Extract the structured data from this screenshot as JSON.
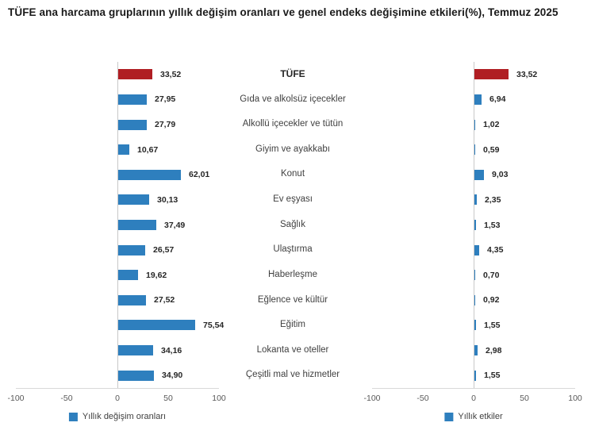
{
  "title": "TÜFE ana harcama gruplarının yıllık değişim oranları ve genel endeks değişimine etkileri(%), Temmuz 2025",
  "chart_data": {
    "type": "bar",
    "orientation": "horizontal",
    "highlight_category": "TÜFE",
    "categories": [
      "TÜFE",
      "Gıda ve alkolsüz içecekler",
      "Alkollü içecekler ve tütün",
      "Giyim ve ayakkabı",
      "Konut",
      "Ev eşyası",
      "Sağlık",
      "Ulaştırma",
      "Haberleşme",
      "Eğlence ve kültür",
      "Eğitim",
      "Lokanta ve oteller",
      "Çeşitli mal ve hizmetler"
    ],
    "series": [
      {
        "name": "Yıllık değişim oranları",
        "values": [
          33.52,
          27.95,
          27.79,
          10.67,
          62.01,
          30.13,
          37.49,
          26.57,
          19.62,
          27.52,
          75.54,
          34.16,
          34.9
        ],
        "value_labels": [
          "33,52",
          "27,95",
          "27,79",
          "10,67",
          "62,01",
          "30,13",
          "37,49",
          "26,57",
          "19,62",
          "27,52",
          "75,54",
          "34,16",
          "34,90"
        ]
      },
      {
        "name": "Yıllık etkiler",
        "values": [
          33.52,
          6.94,
          1.02,
          0.59,
          9.03,
          2.35,
          1.53,
          4.35,
          0.7,
          0.92,
          1.55,
          2.98,
          1.55
        ],
        "value_labels": [
          "33,52",
          "6,94",
          "1,02",
          "0,59",
          "9,03",
          "2,35",
          "1,53",
          "4,35",
          "0,70",
          "0,92",
          "1,55",
          "2,98",
          "1,55"
        ]
      }
    ],
    "axis": {
      "xlim": [
        -100,
        100
      ],
      "ticks": [
        -100,
        -50,
        0,
        50,
        100
      ],
      "tick_labels": [
        "-100",
        "-50",
        "0",
        "50",
        "100"
      ],
      "grid": false
    },
    "legend_position": "bottom",
    "colors": {
      "bar_blue": "#2e7fbe",
      "bar_red": "#b01e23",
      "axis_line": "#c8c8c8",
      "baseline": "#d9d9d9",
      "tick_text": "#595959",
      "label_text": "#404040",
      "value_text": "#262626"
    }
  }
}
